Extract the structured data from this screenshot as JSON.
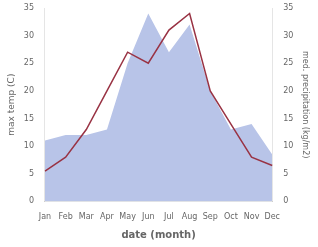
{
  "chart_data": {
    "type": "line",
    "xlabel": "date (month)",
    "ylabel": "max temp (C)",
    "y2label": "med. precipitation (kg/m2)",
    "categories": [
      "Jan",
      "Feb",
      "Mar",
      "Apr",
      "May",
      "Jun",
      "Jul",
      "Aug",
      "Sep",
      "Oct",
      "Nov",
      "Dec"
    ],
    "series": [
      {
        "type": "area",
        "color": "#b8c4e8",
        "axis": "y2",
        "values": [
          11.0,
          12.0,
          12.0,
          13.0,
          25.0,
          34.0,
          27.0,
          32.0,
          20.0,
          13.0,
          14.0,
          8.5
        ]
      },
      {
        "type": "line",
        "color": "#993344",
        "values": [
          5.5,
          8.0,
          13.0,
          20.0,
          27.0,
          25.0,
          31.0,
          34.0,
          20.0,
          14.0,
          8.0,
          6.5
        ]
      }
    ],
    "ylim": [
      0,
      35
    ],
    "yticks": [
      0,
      5,
      10,
      15,
      20,
      25,
      30,
      35
    ],
    "y2lim": [
      0,
      35
    ],
    "y2ticks": [
      0,
      5,
      10,
      15,
      20,
      25,
      30,
      35
    ],
    "grid": false
  }
}
